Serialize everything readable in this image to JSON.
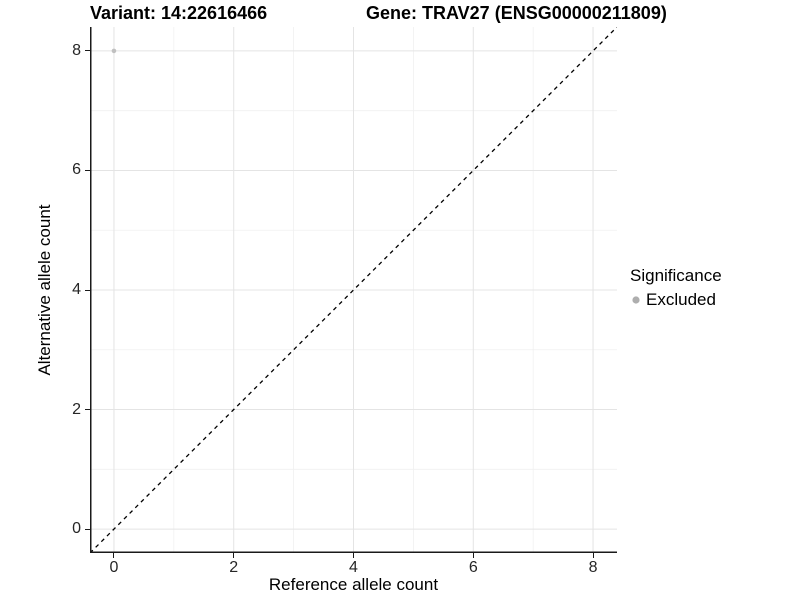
{
  "chart_data": {
    "type": "scatter",
    "title_left": "Variant: 14:22616466",
    "title_right": "Gene: TRAV27 (ENSG00000211809)",
    "xlabel": "Reference allele count",
    "ylabel": "Alternative allele count",
    "xlim": [
      -0.4,
      8.4
    ],
    "ylim": [
      -0.4,
      8.4
    ],
    "x_ticks": [
      0,
      2,
      4,
      6,
      8
    ],
    "y_ticks": [
      0,
      2,
      4,
      6,
      8
    ],
    "x_minor_ticks": [
      1,
      3,
      5,
      7
    ],
    "y_minor_ticks": [
      1,
      3,
      5,
      7
    ],
    "grid": "major+minor",
    "identity_line": {
      "slope": 1,
      "intercept": 0,
      "style": "dashed",
      "color": "#000000"
    },
    "points": [
      {
        "x": 0,
        "y": 8,
        "significance": "Excluded",
        "color": "#c0c0c0"
      }
    ],
    "legend": {
      "position": "right",
      "title": "Significance",
      "items": [
        {
          "label": "Excluded",
          "color": "#aeaeae"
        }
      ]
    },
    "colors": {
      "grid_major": "#e4e4e4",
      "grid_minor": "#f0f0f0",
      "axis_line": "#1a1a1a",
      "tick_text": "#262626"
    }
  }
}
